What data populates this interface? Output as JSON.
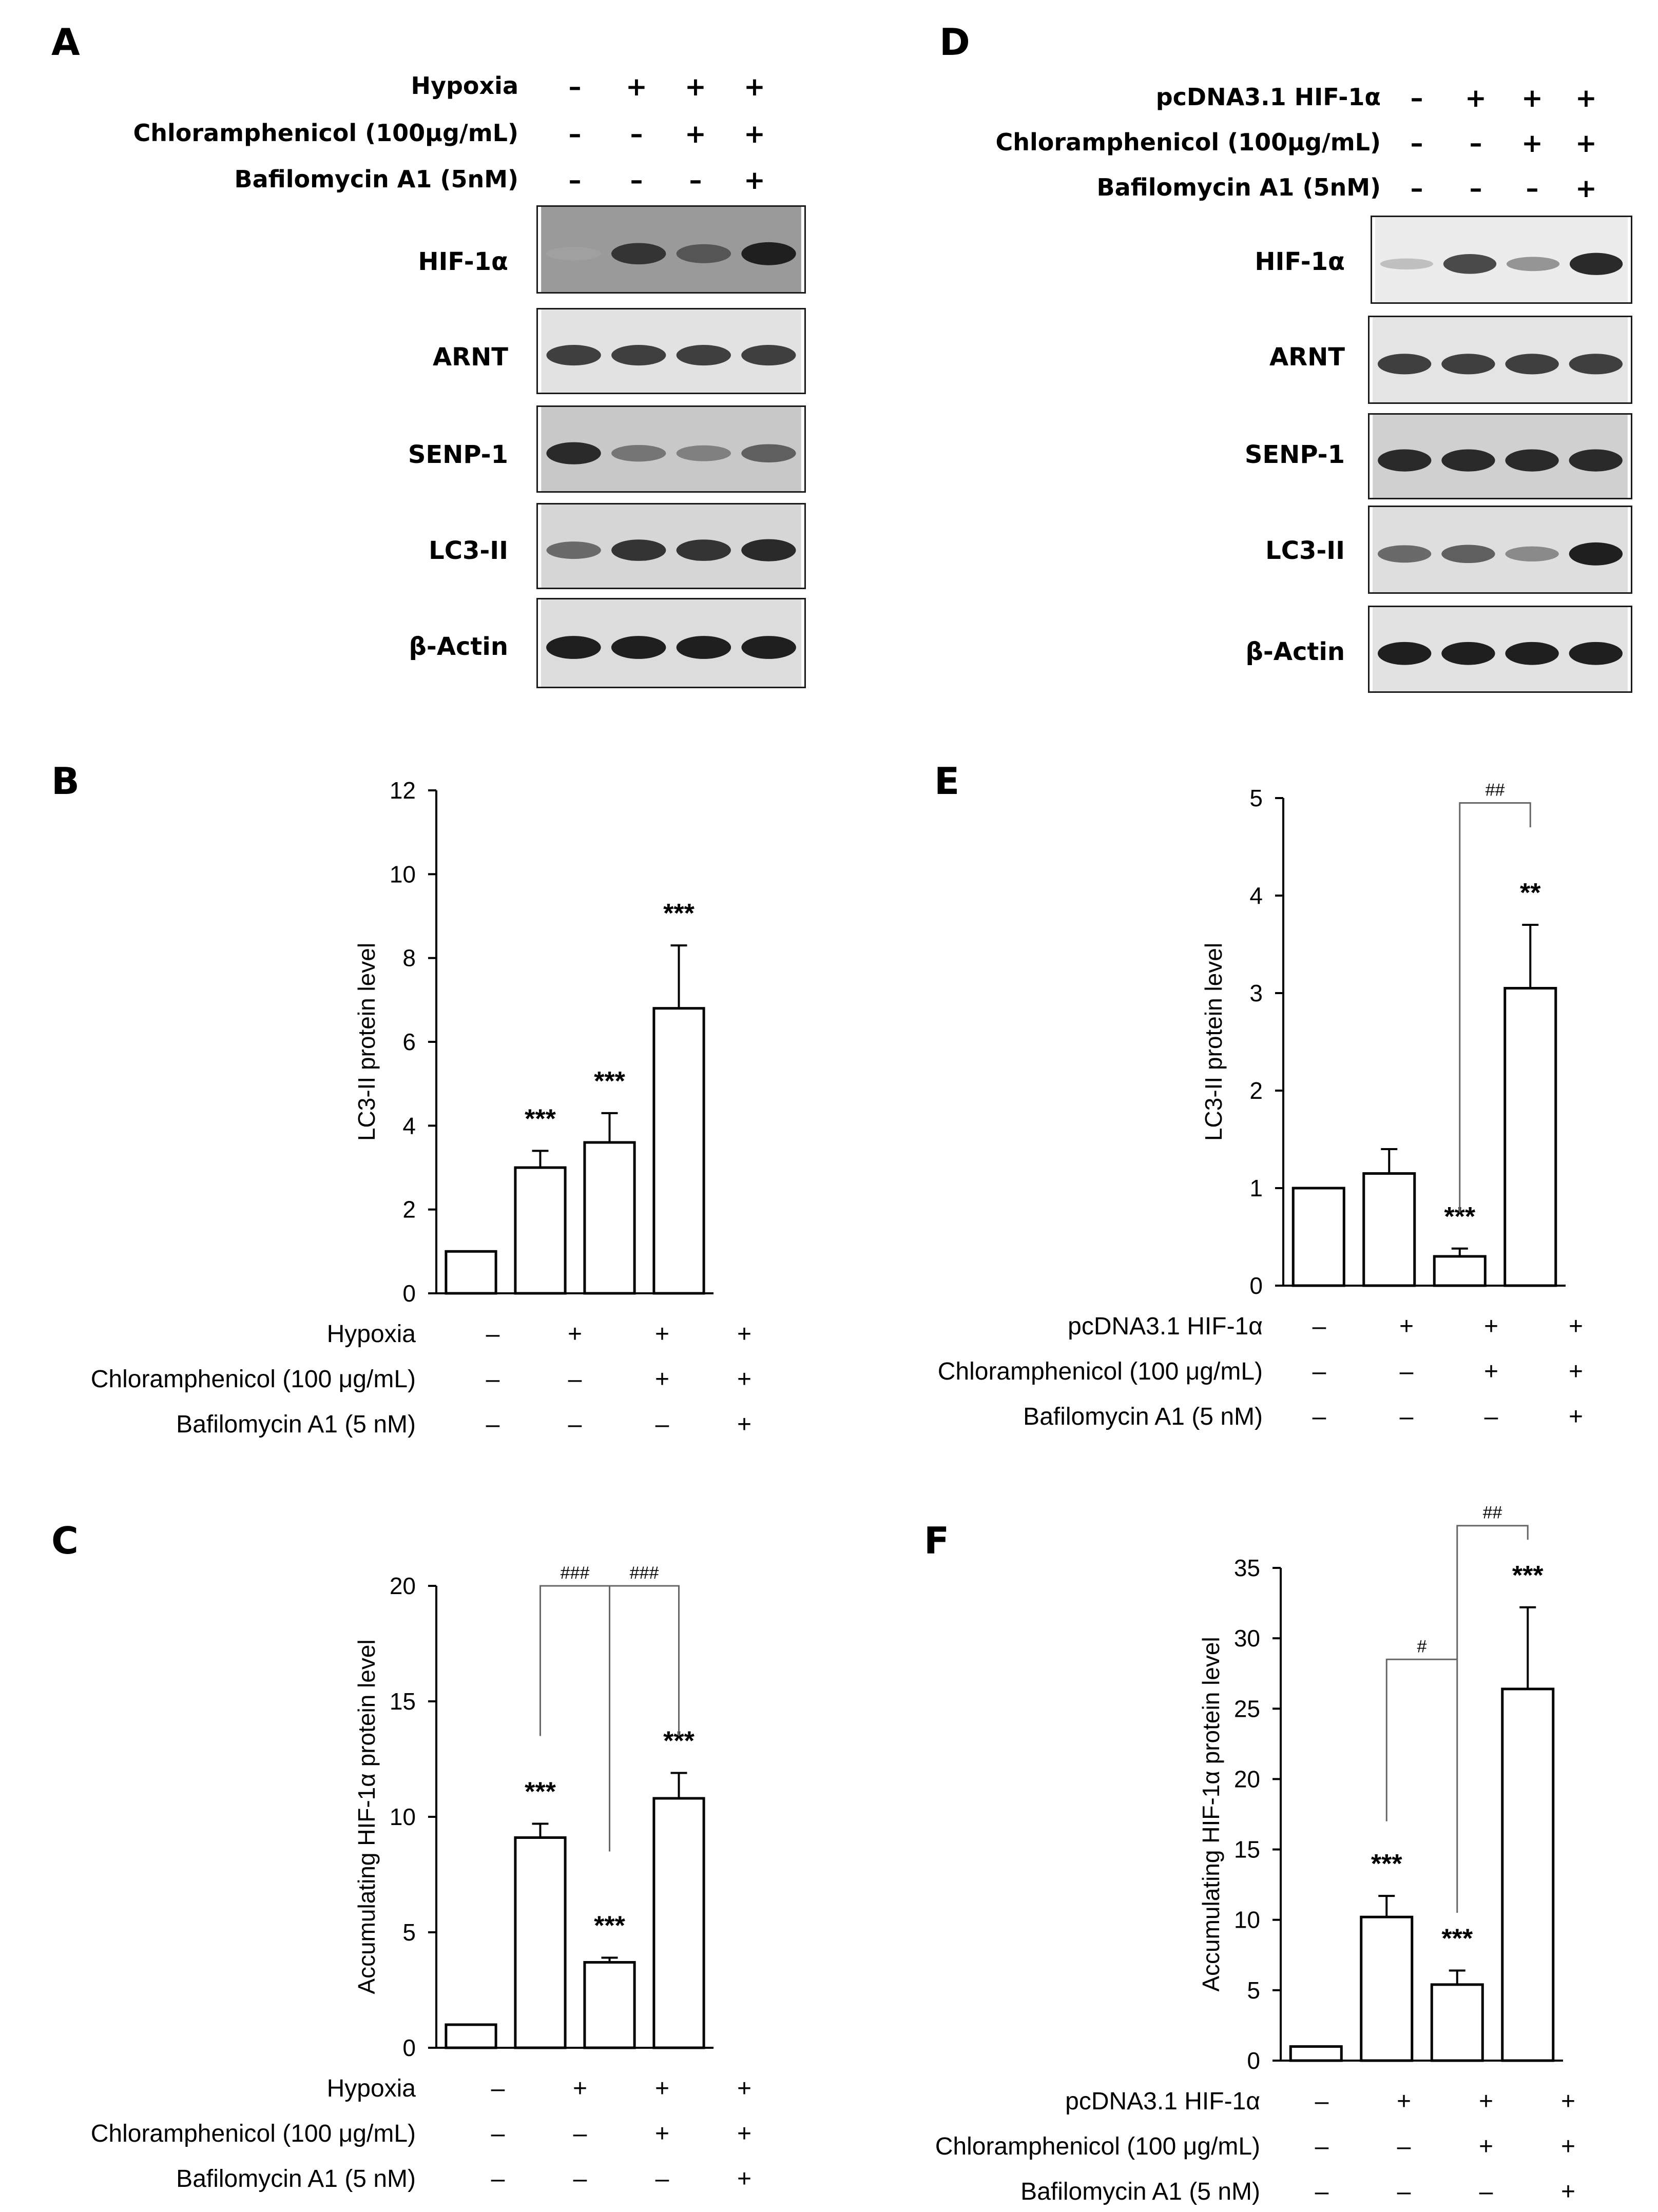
{
  "western_blots": [
    {
      "panel": "A",
      "conditions": [
        {
          "label": "Hypoxia",
          "signs": [
            "–",
            "+",
            "+",
            "+"
          ]
        },
        {
          "label": "Chloramphenicol (100μg/mL)",
          "signs": [
            "–",
            "–",
            "+",
            "+"
          ]
        },
        {
          "label": "Bafilomycin A1 (5nM)",
          "signs": [
            "–",
            "–",
            "–",
            "+"
          ]
        }
      ],
      "bands": [
        {
          "label": "HIF-1α",
          "intensity": [
            0.35,
            0.85,
            0.7,
            0.95
          ],
          "background": "#9a9a9a"
        },
        {
          "label": "ARNT",
          "intensity": [
            0.8,
            0.8,
            0.8,
            0.8
          ],
          "background": "#e2e2e2"
        },
        {
          "label": "SENP-1",
          "intensity": [
            0.9,
            0.55,
            0.5,
            0.65
          ],
          "background": "#c8c8c8"
        },
        {
          "label": "LC3-II",
          "intensity": [
            0.6,
            0.85,
            0.85,
            0.9
          ],
          "background": "#d6d6d6"
        },
        {
          "label": "β-Actin",
          "intensity": [
            0.95,
            0.95,
            0.95,
            0.95
          ],
          "background": "#dcdcdc"
        }
      ]
    },
    {
      "panel": "D",
      "conditions": [
        {
          "label": "pcDNA3.1 HIF-1α",
          "signs": [
            "–",
            "+",
            "+",
            "+"
          ]
        },
        {
          "label": "Chloramphenicol (100μg/mL)",
          "signs": [
            "–",
            "–",
            "+",
            "+"
          ]
        },
        {
          "label": "Bafilomycin A1 (5nM)",
          "signs": [
            "–",
            "–",
            "–",
            "+"
          ]
        }
      ],
      "bands": [
        {
          "label": "HIF-1α",
          "intensity": [
            0.2,
            0.75,
            0.4,
            0.9
          ],
          "background": "#ececec"
        },
        {
          "label": "ARNT",
          "intensity": [
            0.8,
            0.8,
            0.8,
            0.8
          ],
          "background": "#e4e4e4"
        },
        {
          "label": "SENP-1",
          "intensity": [
            0.9,
            0.9,
            0.9,
            0.9
          ],
          "background": "#d0d0d0"
        },
        {
          "label": "LC3-II",
          "intensity": [
            0.6,
            0.65,
            0.45,
            0.95
          ],
          "background": "#dedede"
        },
        {
          "label": "β-Actin",
          "intensity": [
            0.95,
            0.95,
            0.95,
            0.95
          ],
          "background": "#e2e2e2"
        }
      ]
    }
  ],
  "chart_data": [
    {
      "panel": "B",
      "type": "bar",
      "ylabel": "LC3-II protein level",
      "ylim": [
        0,
        12
      ],
      "yticks": [
        "0",
        "2",
        "4",
        "6",
        "8",
        "10",
        "12"
      ],
      "values": [
        1.0,
        3.0,
        3.6,
        6.8
      ],
      "errors": [
        0,
        0.4,
        0.7,
        1.5
      ],
      "stars": [
        "",
        "***",
        "***",
        "***"
      ],
      "conditions": [
        {
          "label": "Hypoxia",
          "signs": [
            "–",
            "+",
            "+",
            "+"
          ]
        },
        {
          "label": "Chloramphenicol (100 μg/mL)",
          "signs": [
            "–",
            "–",
            "+",
            "+"
          ]
        },
        {
          "label": "Bafilomycin A1 (5 nM)",
          "signs": [
            "–",
            "–",
            "–",
            "+"
          ]
        }
      ],
      "brackets": []
    },
    {
      "panel": "C",
      "type": "bar",
      "ylabel": "Accumulating HIF-1α protein level",
      "ylim": [
        0,
        20
      ],
      "yticks": [
        "0",
        "5",
        "10",
        "15",
        "20"
      ],
      "values": [
        1.0,
        9.1,
        3.7,
        10.8
      ],
      "errors": [
        0,
        0.6,
        0.2,
        1.1
      ],
      "stars": [
        "",
        "***",
        "***",
        "***"
      ],
      "conditions": [
        {
          "label": "Hypoxia",
          "signs": [
            "–",
            "+",
            "+",
            "+"
          ]
        },
        {
          "label": "Chloramphenicol (100 μg/mL)",
          "signs": [
            "–",
            "–",
            "+",
            "+"
          ]
        },
        {
          "label": "Bafilomycin A1 (5 nM)",
          "signs": [
            "–",
            "–",
            "–",
            "+"
          ]
        }
      ],
      "brackets": [
        {
          "from": 1,
          "to": 2,
          "label": "###",
          "top": 20.0,
          "ends": [
            13.5,
            8.5
          ]
        },
        {
          "from": 2,
          "to": 3,
          "label": "###",
          "top": 20.0,
          "ends": [
            8.5,
            13.5
          ]
        }
      ]
    },
    {
      "panel": "E",
      "type": "bar",
      "ylabel": "LC3-II protein level",
      "ylim": [
        0,
        5
      ],
      "yticks": [
        "0",
        "1",
        "2",
        "3",
        "4",
        "5"
      ],
      "values": [
        1.0,
        1.15,
        0.3,
        3.05
      ],
      "errors": [
        0,
        0.25,
        0.08,
        0.65
      ],
      "stars": [
        "",
        "",
        "***",
        "**"
      ],
      "conditions": [
        {
          "label": "pcDNA3.1 HIF-1α",
          "signs": [
            "–",
            "+",
            "+",
            "+"
          ]
        },
        {
          "label": "Chloramphenicol (100 μg/mL)",
          "signs": [
            "–",
            "–",
            "+",
            "+"
          ]
        },
        {
          "label": "Bafilomycin A1 (5 nM)",
          "signs": [
            "–",
            "–",
            "–",
            "+"
          ]
        }
      ],
      "brackets": [
        {
          "from": 2,
          "to": 3,
          "label": "##",
          "top": 4.95,
          "ends": [
            0.75,
            4.7
          ]
        }
      ]
    },
    {
      "panel": "F",
      "type": "bar",
      "ylabel": "Accumulating HIF-1α protein level",
      "ylim": [
        0,
        35
      ],
      "yticks": [
        "0",
        "5",
        "10",
        "15",
        "20",
        "25",
        "30",
        "35"
      ],
      "values": [
        1.0,
        10.2,
        5.4,
        26.4
      ],
      "errors": [
        0,
        1.5,
        1.0,
        5.8
      ],
      "stars": [
        "",
        "***",
        "***",
        "***"
      ],
      "conditions": [
        {
          "label": "pcDNA3.1 HIF-1α",
          "signs": [
            "–",
            "+",
            "+",
            "+"
          ]
        },
        {
          "label": "Chloramphenicol (100 μg/mL)",
          "signs": [
            "–",
            "–",
            "+",
            "+"
          ]
        },
        {
          "label": "Bafilomycin A1 (5 nM)",
          "signs": [
            "–",
            "–",
            "–",
            "+"
          ]
        }
      ],
      "brackets": [
        {
          "from": 1,
          "to": 2,
          "label": "#",
          "top": 28.5,
          "ends": [
            17.0,
            28.5
          ]
        },
        {
          "from": 2,
          "to": 3,
          "label": "##",
          "top": 38.0,
          "ends": [
            10.5,
            37.0
          ]
        }
      ]
    }
  ]
}
